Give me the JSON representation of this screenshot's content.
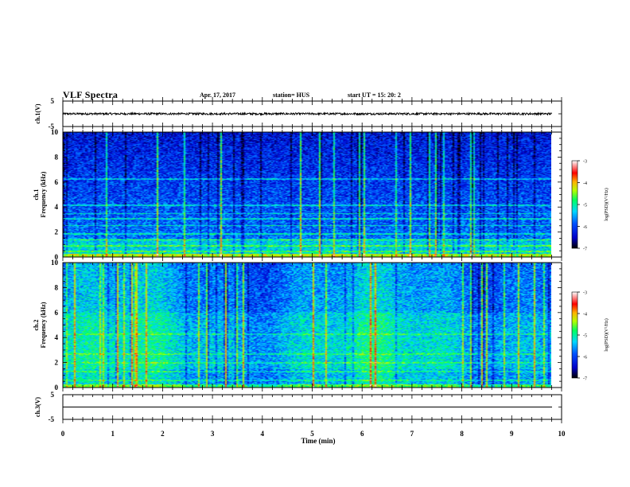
{
  "header": {
    "title": "VLF Spectra",
    "date": "Apr. 17, 2017",
    "station": "station= HUS",
    "start": "start  UT  =    15: 20: 2"
  },
  "chart_data": [
    {
      "type": "line",
      "panel": "ch1-waveform",
      "ylabel": "ch.1(V)",
      "ylim": [
        -5,
        5
      ],
      "y_ticks": [
        "5",
        "-5"
      ],
      "xlim": [
        0,
        10
      ],
      "series": [
        {
          "level": 0.0,
          "noise_amplitude": 0.4
        }
      ]
    },
    {
      "type": "heatmap",
      "panel": "ch1-spectrogram",
      "ylabel": "ch.1\nFrequency  (kHz)",
      "ylim": [
        0,
        10
      ],
      "y_ticks": [
        "0",
        "2",
        "4",
        "6",
        "8",
        "10"
      ],
      "xlim": [
        0,
        10
      ],
      "data_end_min": 9.8,
      "colorbar": {
        "label": "log(PSD)(V²/Hz)",
        "range": [
          -7,
          -3
        ],
        "ticks": [
          "-3",
          "-4",
          "-5",
          "-6",
          "-7"
        ]
      }
    },
    {
      "type": "heatmap",
      "panel": "ch2-spectrogram",
      "ylabel": "ch.2\nFrequency  (kHz)",
      "ylim": [
        0,
        10
      ],
      "y_ticks": [
        "0",
        "2",
        "4",
        "6",
        "8",
        "10"
      ],
      "xlim": [
        0,
        10
      ],
      "data_end_min": 9.8,
      "colorbar": {
        "label": "log(PSD)(V²/Hz)",
        "range": [
          -7,
          -3
        ],
        "ticks": [
          "-3",
          "-4",
          "-5",
          "-6",
          "-7"
        ]
      }
    },
    {
      "type": "line",
      "panel": "ch3-waveform",
      "ylabel": "ch.3(V)",
      "ylim": [
        -5,
        5
      ],
      "y_ticks": [
        "5",
        "-5"
      ],
      "xlim": [
        0,
        10
      ],
      "series": [
        {
          "level": 0.0,
          "noise_amplitude": 0.0
        }
      ]
    }
  ],
  "x_axis": {
    "label": "Time  (min)",
    "ticks": [
      "0",
      "1",
      "2",
      "3",
      "4",
      "5",
      "6",
      "7",
      "8",
      "9",
      "10"
    ]
  },
  "colors": {
    "spectrum": [
      "#000033",
      "#0000aa",
      "#0a2cff",
      "#1e8cff",
      "#00e6ff",
      "#00ff66",
      "#e6ff00",
      "#ff9900",
      "#ff0000",
      "#ffffff"
    ]
  }
}
